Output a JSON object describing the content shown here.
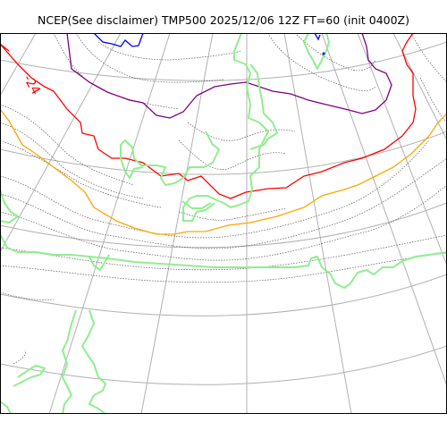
{
  "title": "NCEP(See disclaimer) TMP500 2025/12/06 12Z FT=60 (init 0400Z)",
  "colors": {
    "graticule": "#b0b0b0",
    "coast": "#90ee90",
    "isotherm_minor": "#555555",
    "isotherm_red": "#ff0000",
    "isotherm_purple": "#800080",
    "isotherm_orange": "#ffa500",
    "isotherm_blue": "#0000ff",
    "frame": "#000000"
  },
  "contour_labels": [
    {
      "text": "-24",
      "color": "#ff0000"
    }
  ]
}
